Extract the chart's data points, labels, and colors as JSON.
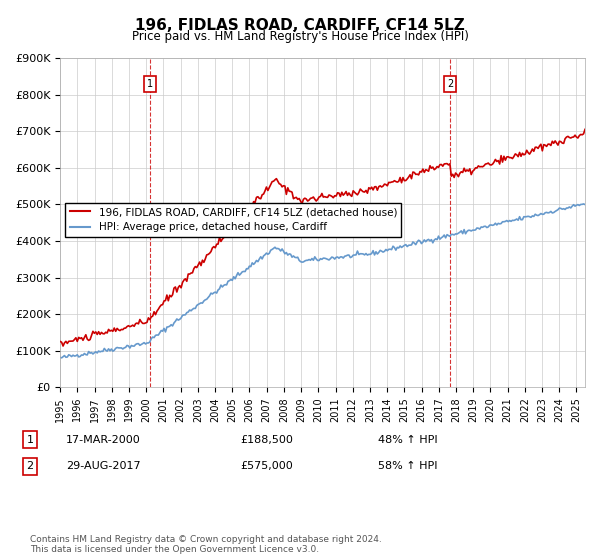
{
  "title": "196, FIDLAS ROAD, CARDIFF, CF14 5LZ",
  "subtitle": "Price paid vs. HM Land Registry's House Price Index (HPI)",
  "ylabel_ticks": [
    "£0",
    "£100K",
    "£200K",
    "£300K",
    "£400K",
    "£500K",
    "£600K",
    "£700K",
    "£800K",
    "£900K"
  ],
  "ylim": [
    0,
    900000
  ],
  "xlim_start": 1995.0,
  "xlim_end": 2025.5,
  "transaction1_date": 2000.21,
  "transaction1_price": 188500,
  "transaction1_label": "1",
  "transaction1_text": "17-MAR-2000",
  "transaction1_price_str": "£188,500",
  "transaction1_hpi_str": "48% ↑ HPI",
  "transaction2_date": 2017.66,
  "transaction2_price": 575000,
  "transaction2_label": "2",
  "transaction2_text": "29-AUG-2017",
  "transaction2_price_str": "£575,000",
  "transaction2_hpi_str": "58% ↑ HPI",
  "legend_label1": "196, FIDLAS ROAD, CARDIFF, CF14 5LZ (detached house)",
  "legend_label2": "HPI: Average price, detached house, Cardiff",
  "footer": "Contains HM Land Registry data © Crown copyright and database right 2024.\nThis data is licensed under the Open Government Licence v3.0.",
  "line_color_red": "#cc0000",
  "line_color_blue": "#6699cc",
  "marker_box_color": "#cc0000",
  "background_color": "#ffffff",
  "grid_color": "#cccccc"
}
